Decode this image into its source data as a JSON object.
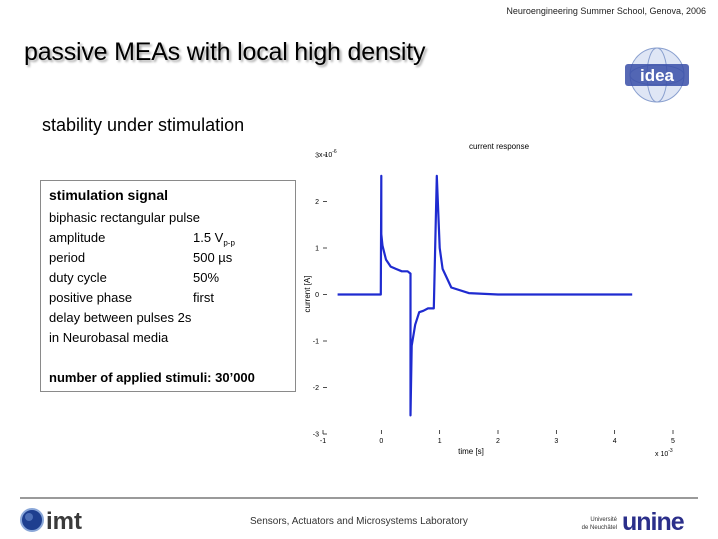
{
  "header": {
    "event": "Neuroengineering Summer School, Genova, 2006",
    "title": "passive MEAs with local high density",
    "logo": "idea-logo"
  },
  "subtitle": "stability under stimulation",
  "signal_box": {
    "heading": "stimulation signal",
    "description": "biphasic rectangular pulse",
    "params": [
      {
        "key": "amplitude",
        "value": "1.5 V",
        "sub": "p-p"
      },
      {
        "key": "period",
        "value": "500 µs",
        "sub": ""
      },
      {
        "key": "duty cycle",
        "value": "50%",
        "sub": ""
      },
      {
        "key": "positive phase",
        "value": "first",
        "sub": ""
      }
    ],
    "delay": "delay between pulses  2s",
    "media": "in Neurobasal media",
    "stimuli": "number of applied stimuli: 30’000"
  },
  "chart_data": {
    "type": "line",
    "title": "current response",
    "xlabel": "time [s]",
    "ylabel": "current [A]",
    "x_exponent": "x 10",
    "x_exponent_power": "-3",
    "y_exponent": "x 10",
    "y_exponent_power": "-6",
    "xlim": [
      -1,
      5
    ],
    "ylim": [
      -3,
      3
    ],
    "x_ticks": [
      "-1",
      "0",
      "1",
      "2",
      "3",
      "4",
      "5"
    ],
    "y_ticks": [
      "3",
      "2",
      "1",
      "0",
      "-1",
      "-2",
      "-3"
    ],
    "color": "#1f2bd0",
    "series": [
      {
        "x": [
          -0.75,
          -0.01,
          0.0,
          0.0,
          0.02,
          0.08,
          0.16,
          0.25,
          0.35,
          0.45,
          0.5,
          0.5,
          0.52,
          0.58,
          0.65,
          0.72,
          0.8,
          0.9,
          0.95,
          1.0,
          1.05,
          1.2,
          1.5,
          2.0,
          3.0,
          4.0,
          4.3
        ],
        "y": [
          0.0,
          0.0,
          2.55,
          1.3,
          1.05,
          0.75,
          0.6,
          0.55,
          0.5,
          0.5,
          0.45,
          -2.6,
          -1.1,
          -0.65,
          -0.38,
          -0.35,
          -0.3,
          -0.3,
          2.55,
          1.0,
          0.55,
          0.15,
          0.03,
          0.0,
          0.0,
          0.0,
          0.0
        ]
      }
    ]
  },
  "footer": {
    "lab": "Sensors, Actuators and Microsystems Laboratory",
    "imt_text": "imt",
    "unine_text": "unine",
    "unine_caption_1": "Université",
    "unine_caption_2": "de Neuchâtel"
  }
}
